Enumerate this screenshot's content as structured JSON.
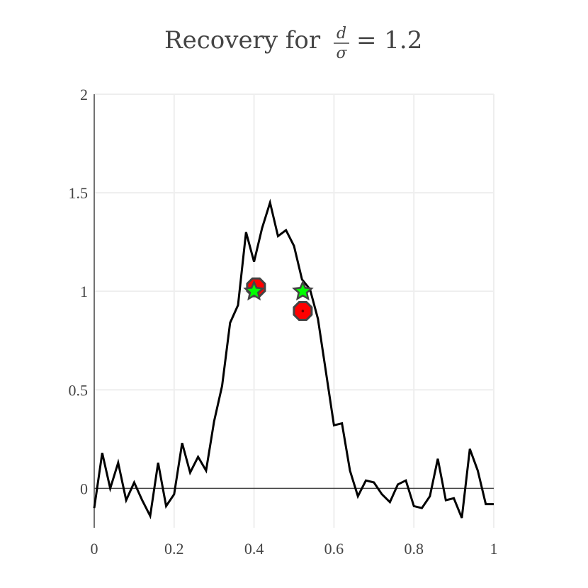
{
  "chart_data": {
    "type": "line",
    "title": {
      "prefix": "Recovery for",
      "numerator": "d",
      "denominator": "σ",
      "suffix": "= 1.2"
    },
    "xlabel": "",
    "ylabel": "",
    "xlim": [
      0,
      1
    ],
    "ylim": [
      -0.2,
      2
    ],
    "x_ticks": [
      {
        "value": 0,
        "label": "0"
      },
      {
        "value": 0.2,
        "label": "0.2"
      },
      {
        "value": 0.4,
        "label": "0.4"
      },
      {
        "value": 0.6,
        "label": "0.6"
      },
      {
        "value": 0.8,
        "label": "0.8"
      },
      {
        "value": 1,
        "label": "1"
      }
    ],
    "y_ticks": [
      {
        "value": 0,
        "label": "0"
      },
      {
        "value": 0.5,
        "label": "0.5"
      },
      {
        "value": 1,
        "label": "1"
      },
      {
        "value": 1.5,
        "label": "1.5"
      },
      {
        "value": 2,
        "label": "2"
      }
    ],
    "grid": true,
    "legend": "none",
    "series": [
      {
        "type": "line",
        "color": "#000000",
        "x": [
          0.0,
          0.02,
          0.04,
          0.06,
          0.08,
          0.1,
          0.12,
          0.14,
          0.16,
          0.18,
          0.2,
          0.22,
          0.24,
          0.26,
          0.28,
          0.3,
          0.32,
          0.34,
          0.36,
          0.38,
          0.4,
          0.42,
          0.44,
          0.46,
          0.48,
          0.5,
          0.52,
          0.54,
          0.56,
          0.58,
          0.6,
          0.62,
          0.64,
          0.66,
          0.68,
          0.7,
          0.72,
          0.74,
          0.76,
          0.78,
          0.8,
          0.82,
          0.84,
          0.86,
          0.88,
          0.9,
          0.92,
          0.94,
          0.96,
          0.98,
          1.0
        ],
        "y": [
          -0.1,
          0.18,
          0.0,
          0.13,
          -0.06,
          0.03,
          -0.06,
          -0.14,
          0.13,
          -0.09,
          -0.03,
          0.23,
          0.08,
          0.16,
          0.09,
          0.34,
          0.52,
          0.84,
          0.93,
          1.3,
          1.15,
          1.32,
          1.45,
          1.28,
          1.31,
          1.23,
          1.06,
          1.01,
          0.86,
          0.59,
          0.32,
          0.33,
          0.09,
          -0.04,
          0.04,
          0.03,
          -0.03,
          -0.07,
          0.02,
          0.04,
          -0.09,
          -0.1,
          -0.04,
          0.15,
          -0.06,
          -0.05,
          -0.15,
          0.2,
          0.09,
          -0.08,
          -0.08
        ]
      },
      {
        "type": "scatter",
        "marker": "octagon",
        "color": "#ff0000",
        "edge_color": "#444444",
        "x": [
          0.405,
          0.522
        ],
        "y": [
          1.02,
          0.9
        ]
      },
      {
        "type": "scatter",
        "marker": "star",
        "color": "#00ff00",
        "edge_color": "#444444",
        "x": [
          0.4,
          0.522
        ],
        "y": [
          1.0,
          1.0
        ]
      }
    ]
  }
}
